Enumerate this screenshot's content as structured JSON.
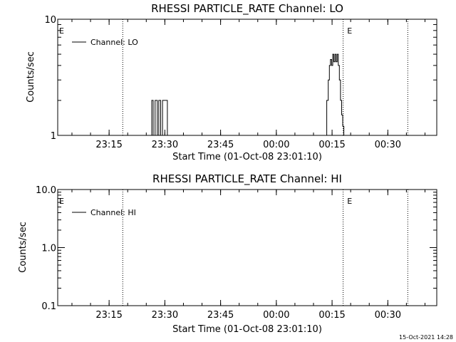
{
  "chart_data": [
    {
      "type": "line",
      "title": "RHESSI PARTICLE_RATE Channel: LO",
      "xlabel": "Start Time (01-Oct-08 23:01:10)",
      "ylabel": "Counts/sec",
      "yscale": "log",
      "ylim": [
        1,
        10
      ],
      "ytick_labels": [
        "1",
        "10"
      ],
      "ytick_values": [
        1,
        10
      ],
      "xlim_minutes": [
        0,
        102
      ],
      "xtick_labels": [
        "23:15",
        "23:30",
        "23:45",
        "00:00",
        "00:15",
        "00:30"
      ],
      "xtick_values_minutes": [
        13.83,
        28.83,
        43.83,
        58.83,
        73.83,
        88.83
      ],
      "eclipse_markers_minutes": [
        17.5,
        76.8,
        94.2
      ],
      "eclipse_label": "E",
      "eclipse_labels_minutes": [
        0,
        77.5
      ],
      "legend": "top-left",
      "series": [
        {
          "name": "Channel: LO",
          "x_minutes": [
            0,
            25.3,
            25.3,
            25.7,
            25.7,
            26.2,
            26.2,
            26.8,
            26.8,
            27.2,
            27.2,
            27.7,
            27.7,
            28.2,
            28.2,
            29.5,
            29.5,
            72.4,
            72.4,
            72.8,
            72.8,
            73.1,
            73.1,
            73.4,
            73.4,
            73.7,
            73.7,
            74.0,
            74.0,
            74.3,
            74.3,
            74.6,
            74.6,
            74.9,
            74.9,
            75.2,
            75.2,
            75.5,
            75.5,
            75.8,
            75.8,
            76.1,
            76.1,
            76.4,
            76.4,
            76.7,
            76.7,
            77.0,
            77.0,
            102
          ],
          "y_values": [
            1,
            1,
            2,
            2,
            1,
            1,
            2,
            2,
            1,
            1,
            2,
            2,
            1,
            1,
            2,
            2,
            1,
            1,
            2,
            2,
            3,
            3,
            4,
            4,
            4.5,
            4.5,
            4,
            4,
            5,
            5,
            4.3,
            4.3,
            5,
            5,
            4.3,
            4.3,
            5,
            5,
            4,
            4,
            3,
            3,
            2,
            2,
            1.5,
            1.5,
            1.2,
            1.2,
            1,
            1
          ]
        }
      ]
    },
    {
      "type": "line",
      "title": "RHESSI PARTICLE_RATE Channel: HI",
      "xlabel": "Start Time (01-Oct-08 23:01:10)",
      "ylabel": "Counts/sec",
      "yscale": "log",
      "ylim": [
        0.1,
        10
      ],
      "ytick_labels": [
        "0.1",
        "1.0",
        "10.0"
      ],
      "ytick_values": [
        0.1,
        1,
        10
      ],
      "xlim_minutes": [
        0,
        102
      ],
      "xtick_labels": [
        "23:15",
        "23:30",
        "23:45",
        "00:00",
        "00:15",
        "00:30"
      ],
      "xtick_values_minutes": [
        13.83,
        28.83,
        43.83,
        58.83,
        73.83,
        88.83
      ],
      "eclipse_markers_minutes": [
        17.5,
        76.8,
        94.2
      ],
      "eclipse_label": "E",
      "eclipse_labels_minutes": [
        0,
        77.5
      ],
      "legend": "top-left",
      "series": [
        {
          "name": "Channel: HI",
          "x_minutes": [],
          "y_values": []
        }
      ]
    }
  ],
  "timestamp": "15-Oct-2021 14:28"
}
